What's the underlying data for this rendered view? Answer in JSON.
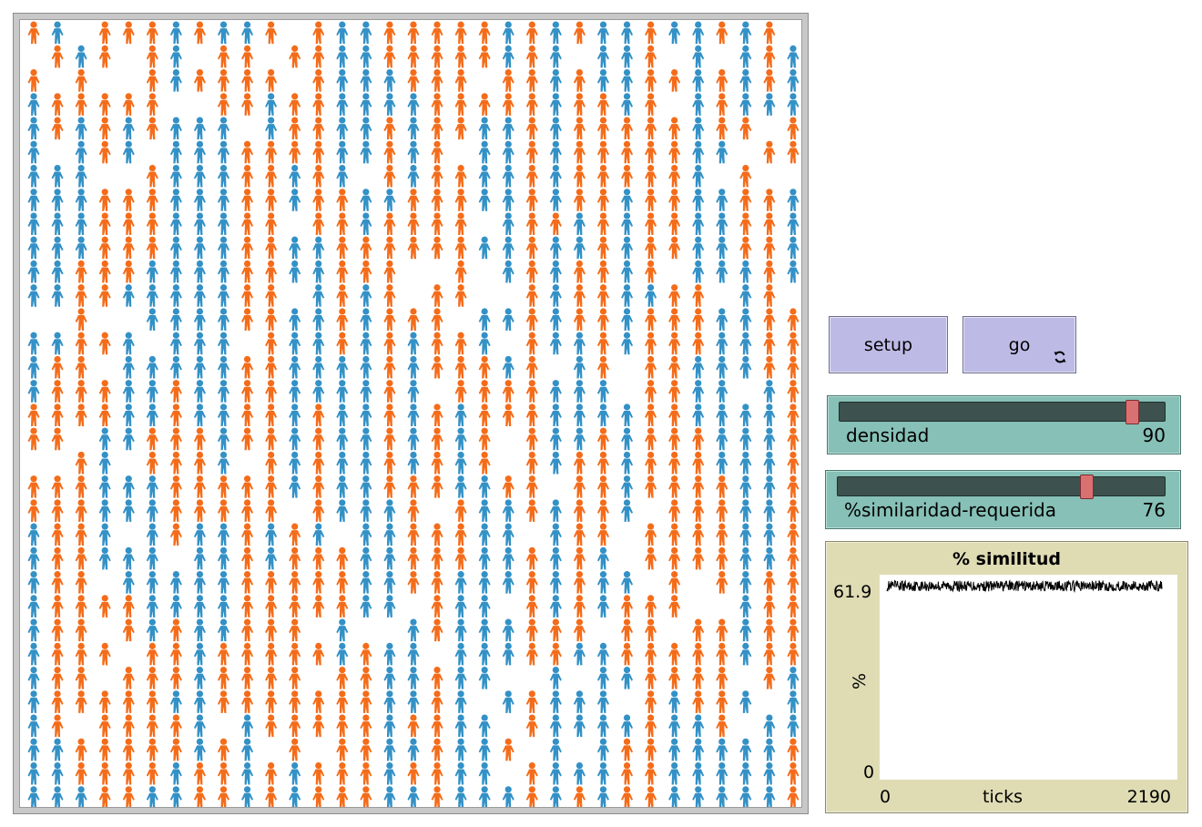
{
  "world": {
    "agent_colors": {
      "orange": "#f46c1a",
      "blue": "#3391c6"
    },
    "background": "#ffffff"
  },
  "buttons": {
    "setup_label": "setup",
    "go_label": "go",
    "go_icon": "forever-icon"
  },
  "sliders": [
    {
      "label": "densidad",
      "value": "90",
      "min": 0,
      "max": 100,
      "fraction": 0.9
    },
    {
      "label": "%similaridad-requerida",
      "value": "76",
      "min": 0,
      "max": 100,
      "fraction": 0.76
    }
  ],
  "plot": {
    "title": "% similitud",
    "ylabel": "%",
    "xlabel": "ticks",
    "y_max": "61.9",
    "y_min": "0",
    "x_min": "0",
    "x_max": "2190",
    "pen_color": "#000000",
    "series_level": 58.5,
    "series_noise": 1.6
  },
  "chart_data": {
    "type": "line",
    "title": "% similitud",
    "xlabel": "ticks",
    "ylabel": "%",
    "xlim": [
      0,
      2190
    ],
    "ylim": [
      0,
      61.9
    ],
    "series": [
      {
        "x": [
          0,
          2190
        ],
        "values": [
          58.5,
          58.5
        ]
      }
    ]
  }
}
